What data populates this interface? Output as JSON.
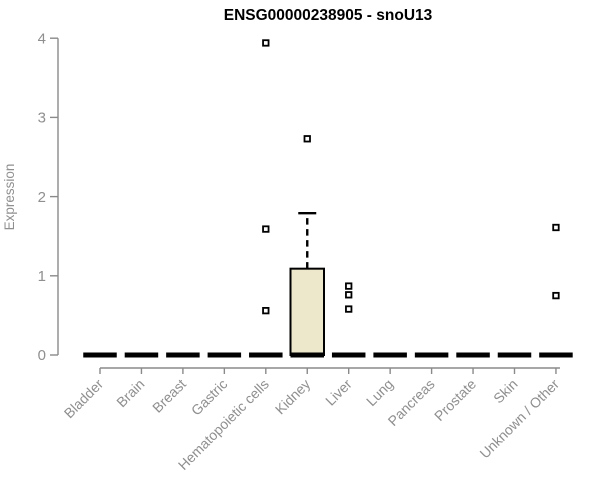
{
  "chart_data": {
    "type": "box",
    "title": "ENSG00000238905 - snoU13",
    "ylabel": "Expression",
    "xlabel": "",
    "ylim": [
      0,
      4
    ],
    "yticks": [
      0,
      1,
      2,
      3,
      4
    ],
    "grid": false,
    "legend": "none",
    "categories": [
      "Bladder",
      "Brain",
      "Breast",
      "Gastric",
      "Hematopoietic cells",
      "Kidney",
      "Liver",
      "Lung",
      "Pancreas",
      "Prostate",
      "Skin",
      "Unknown / Other"
    ],
    "groups": [
      {
        "category": "Bladder",
        "median": 0,
        "q1": 0,
        "q3": 0,
        "outliers": []
      },
      {
        "category": "Brain",
        "median": 0,
        "q1": 0,
        "q3": 0,
        "outliers": []
      },
      {
        "category": "Breast",
        "median": 0,
        "q1": 0,
        "q3": 0,
        "outliers": []
      },
      {
        "category": "Gastric",
        "median": 0,
        "q1": 0,
        "q3": 0,
        "outliers": []
      },
      {
        "category": "Hematopoietic cells",
        "median": 0,
        "q1": 0,
        "q3": 0,
        "outliers": [
          3.94,
          1.59,
          0.56
        ]
      },
      {
        "category": "Kidney",
        "median": 0,
        "q1": 0,
        "q3": 1.09,
        "whisker_high": 1.79,
        "outliers": [
          2.73
        ]
      },
      {
        "category": "Liver",
        "median": 0,
        "q1": 0,
        "q3": 0,
        "outliers": [
          0.87,
          0.76,
          0.58
        ]
      },
      {
        "category": "Lung",
        "median": 0,
        "q1": 0,
        "q3": 0,
        "outliers": []
      },
      {
        "category": "Pancreas",
        "median": 0,
        "q1": 0,
        "q3": 0,
        "outliers": []
      },
      {
        "category": "Prostate",
        "median": 0,
        "q1": 0,
        "q3": 0,
        "outliers": []
      },
      {
        "category": "Skin",
        "median": 0,
        "q1": 0,
        "q3": 0,
        "outliers": []
      },
      {
        "category": "Unknown / Other",
        "median": 0,
        "q1": 0,
        "q3": 0,
        "outliers": [
          1.61,
          0.75
        ]
      }
    ],
    "colors": {
      "background": "#FFFFFF",
      "box_fill": "#EDE8CC",
      "box_stroke": "#000000",
      "median": "#000000",
      "whisker": "#000000",
      "outlier_fill": "#FFFFFF",
      "outlier_stroke": "#000000",
      "axis": "#8A8A8A",
      "tick_label": "#8F8F8F",
      "title": "#000000"
    }
  }
}
